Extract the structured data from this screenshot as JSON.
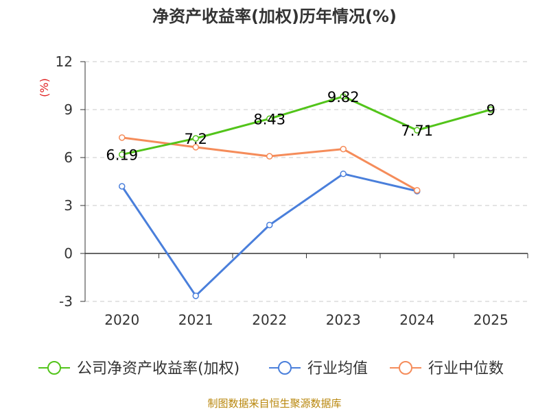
{
  "chart_data": {
    "type": "line",
    "title": "净资产收益率(加权)历年情况(%)",
    "ylabel": "(%)",
    "xlabel": "",
    "categories": [
      "2020",
      "2021",
      "2022",
      "2023",
      "2024",
      "2025"
    ],
    "ylim": [
      -3,
      12
    ],
    "yticks": [
      "12",
      "9",
      "6",
      "3",
      "0",
      "-3"
    ],
    "grid": true,
    "legend_position": "bottom",
    "series": [
      {
        "name": "公司净资产收益率(加权)",
        "color": "#52c41a",
        "values": [
          6.19,
          7.2,
          8.43,
          9.82,
          7.71,
          9
        ],
        "labels": [
          "6.19",
          "7.2",
          "8.43",
          "9.82",
          "7.71",
          "9"
        ]
      },
      {
        "name": "行业均值",
        "color": "#4a7fdb",
        "values": [
          4.2,
          -2.65,
          1.78,
          4.98,
          3.9,
          null
        ]
      },
      {
        "name": "行业中位数",
        "color": "#f58c5a",
        "values": [
          7.25,
          6.65,
          6.08,
          6.53,
          3.95,
          null
        ]
      }
    ]
  },
  "source": "制图数据来自恒生聚源数据库"
}
